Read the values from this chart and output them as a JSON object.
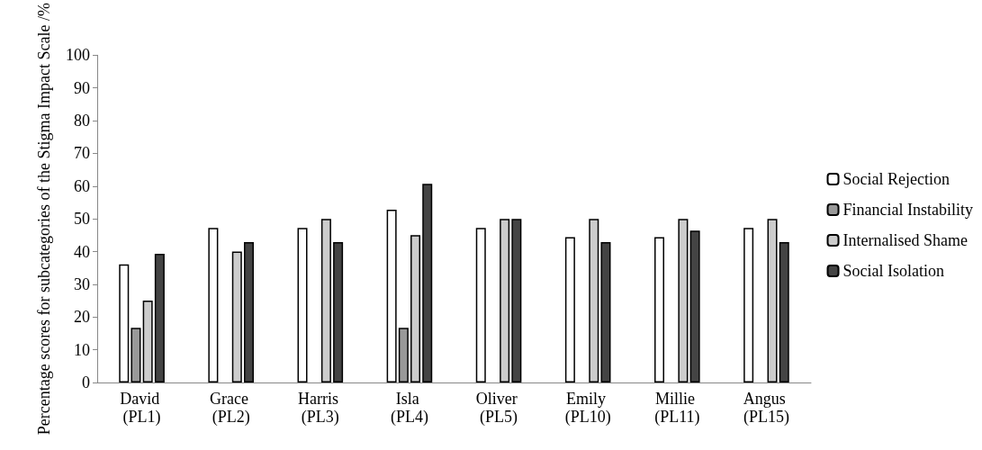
{
  "chart_data": {
    "type": "bar",
    "ylabel": "Percentage scores for subcategories of the Stigma Impact Scale /%",
    "categories": [
      "David (PL1)",
      "Grace (PL2)",
      "Harris (PL3)",
      "Isla (PL4)",
      "Oliver (PL5)",
      "Emily (PL10)",
      "Millie (PL11)",
      "Angus (PL15)"
    ],
    "series": [
      {
        "name": "Social Rejection",
        "color": "#ffffff",
        "values": [
          36.1,
          47.2,
          47.2,
          52.8,
          47.2,
          44.4,
          44.4,
          47.2
        ]
      },
      {
        "name": "Financial Instability",
        "color": "#999999",
        "values": [
          16.7,
          null,
          null,
          16.7,
          null,
          null,
          null,
          null
        ]
      },
      {
        "name": "Internalised Shame",
        "color": "#cccccc",
        "values": [
          25,
          40,
          50,
          45,
          50,
          50,
          50,
          50
        ]
      },
      {
        "name": "Social Isolation",
        "color": "#444444",
        "values": [
          39.3,
          42.9,
          42.9,
          60.7,
          50,
          42.9,
          46.4,
          42.9
        ]
      }
    ],
    "ylim": [
      0,
      100
    ],
    "yticks": [
      0,
      10,
      20,
      30,
      40,
      50,
      60,
      70,
      80,
      90,
      100
    ],
    "grid": false,
    "legend": "right"
  }
}
